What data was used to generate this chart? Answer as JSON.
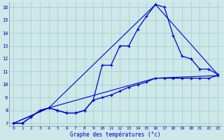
{
  "xlabel": "Graphe des températures (°c)",
  "background_color": "#cce8e8",
  "grid_color": "#aacece",
  "line_color": "#0000cc",
  "xlim": [
    -0.5,
    23.5
  ],
  "ylim": [
    6.8,
    16.4
  ],
  "xticks": [
    0,
    1,
    2,
    3,
    4,
    5,
    6,
    7,
    8,
    9,
    10,
    11,
    12,
    13,
    14,
    15,
    16,
    17,
    18,
    19,
    20,
    21,
    22,
    23
  ],
  "yticks": [
    7,
    8,
    9,
    10,
    11,
    12,
    13,
    14,
    15,
    16
  ],
  "line1_x": [
    0,
    1,
    2,
    3,
    4,
    5,
    6,
    7,
    8,
    9,
    10,
    11,
    12,
    13,
    14,
    15,
    16,
    17,
    18,
    19,
    20,
    21,
    22,
    23
  ],
  "line1_y": [
    7.0,
    7.0,
    7.5,
    8.0,
    8.2,
    8.0,
    7.8,
    7.8,
    8.0,
    8.8,
    11.5,
    11.5,
    13.0,
    13.0,
    14.3,
    15.3,
    16.2,
    16.0,
    13.8,
    12.2,
    12.0,
    11.2,
    11.2,
    10.8
  ],
  "line2_x": [
    0,
    1,
    2,
    3,
    4,
    5,
    6,
    7,
    8,
    9,
    10,
    11,
    12,
    13,
    14,
    15,
    16,
    17,
    18,
    19,
    20,
    21,
    22,
    23
  ],
  "line2_y": [
    7.0,
    7.0,
    7.5,
    8.0,
    8.2,
    8.0,
    7.8,
    7.8,
    8.0,
    8.8,
    9.0,
    9.2,
    9.5,
    9.8,
    10.0,
    10.2,
    10.5,
    10.5,
    10.5,
    10.5,
    10.5,
    10.5,
    10.5,
    10.7
  ],
  "line3_x": [
    0,
    4,
    16,
    23
  ],
  "line3_y": [
    7.0,
    8.2,
    16.2,
    10.8
  ],
  "line4_x": [
    0,
    4,
    16,
    23
  ],
  "line4_y": [
    7.0,
    8.2,
    10.5,
    10.7
  ]
}
